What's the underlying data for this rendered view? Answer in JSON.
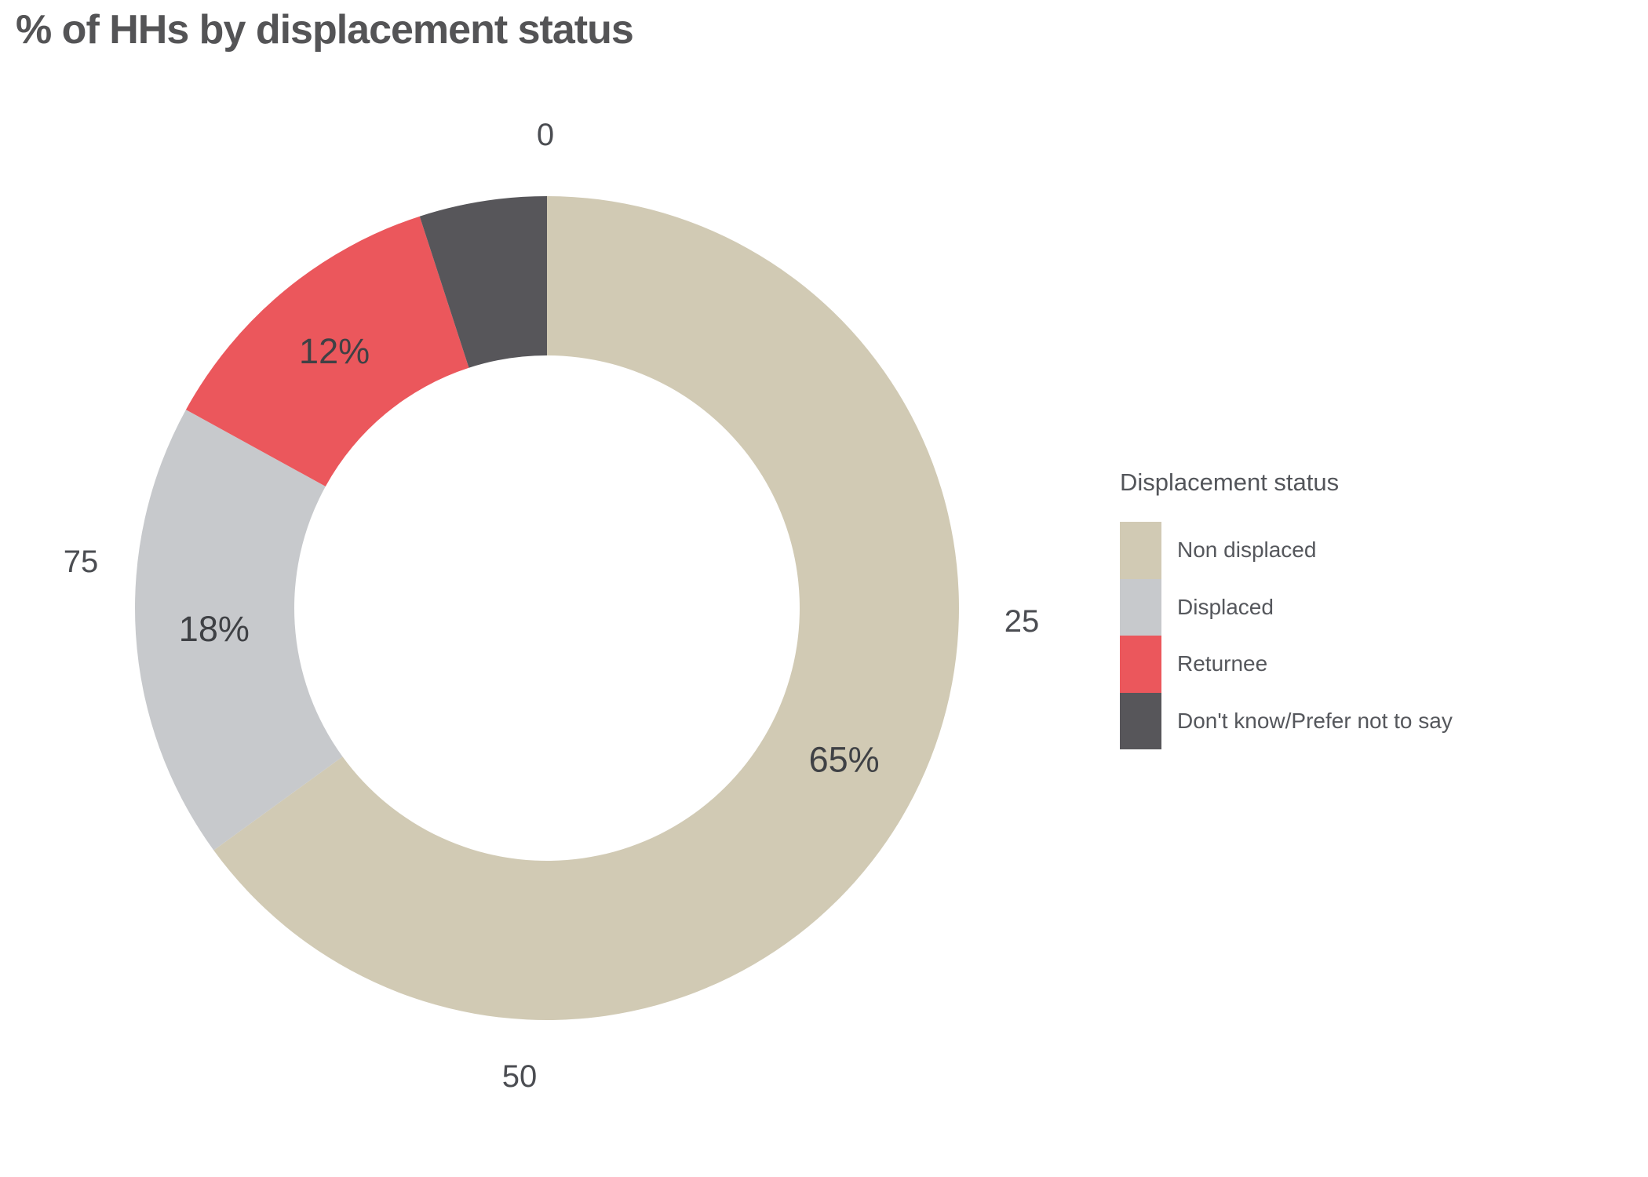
{
  "page_title": "% of HHs by displacement status",
  "chart_data": {
    "type": "pie",
    "subtype": "donut",
    "title": "% of HHs by displacement status",
    "start_angle_deg": 0,
    "direction": "clockwise",
    "grid": false,
    "legend_position": "right",
    "axis_tick_labels": [
      "0",
      "25",
      "50",
      "75"
    ],
    "slices": [
      {
        "label": "Non displaced",
        "value": 65,
        "display": "65%",
        "color": "#d1cab4",
        "show_label": true
      },
      {
        "label": "Displaced",
        "value": 18,
        "display": "18%",
        "color": "#c7c9cc",
        "show_label": true
      },
      {
        "label": "Returnee",
        "value": 12,
        "display": "12%",
        "color": "#eb575c",
        "show_label": true
      },
      {
        "label": "Don't know/Prefer not to say",
        "value": 5,
        "display": "",
        "color": "#57565a",
        "show_label": false
      }
    ]
  },
  "legend": {
    "title": "Displacement status",
    "items": [
      {
        "label": "Non displaced",
        "color": "#d1cab4"
      },
      {
        "label": "Displaced",
        "color": "#c7c9cc"
      },
      {
        "label": "Returnee",
        "color": "#eb575c"
      },
      {
        "label": "Don't know/Prefer not to say",
        "color": "#57565a"
      }
    ]
  }
}
